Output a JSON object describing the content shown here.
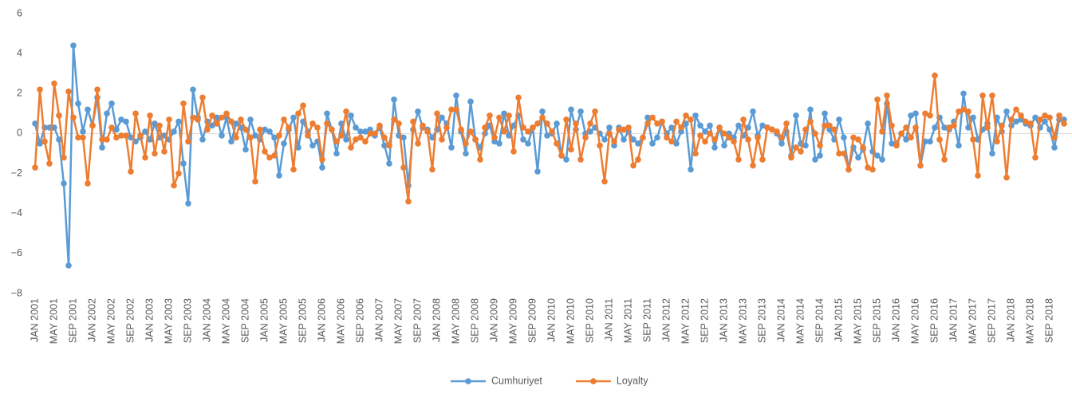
{
  "chart_data": {
    "type": "line",
    "categories": [
      "JAN 2001",
      null,
      null,
      null,
      "MAY 2001",
      null,
      null,
      null,
      "SEP 2001",
      null,
      null,
      null,
      "JAN 2002",
      null,
      null,
      null,
      "MAY 2002",
      null,
      null,
      null,
      "SEP 2002",
      null,
      null,
      null,
      "JAN 2003",
      null,
      null,
      null,
      "MAY 2003",
      null,
      null,
      null,
      "SEP 2003",
      null,
      null,
      null,
      "JAN 2004",
      null,
      null,
      null,
      "MAY 2004",
      null,
      null,
      null,
      "SEP 2004",
      null,
      null,
      null,
      "JAN 2005",
      null,
      null,
      null,
      "MAY 2005",
      null,
      null,
      null,
      "SEP 2005",
      null,
      null,
      null,
      "JAN 2006",
      null,
      null,
      null,
      "MAY 2006",
      null,
      null,
      null,
      "SEP 2006",
      null,
      null,
      null,
      "JAN 2007",
      null,
      null,
      null,
      "MAY 2007",
      null,
      null,
      null,
      "SEP 2007",
      null,
      null,
      null,
      "JAN 2008",
      null,
      null,
      null,
      "MAY 2008",
      null,
      null,
      null,
      "SEP 2008",
      null,
      null,
      null,
      "JAN 2009",
      null,
      null,
      null,
      "MAY 2009",
      null,
      null,
      null,
      "SEP 2009",
      null,
      null,
      null,
      "JAN 2010",
      null,
      null,
      null,
      "MAY 2010",
      null,
      null,
      null,
      "SEP 2010",
      null,
      null,
      null,
      "JAN 2011",
      null,
      null,
      null,
      "MAY 2011",
      null,
      null,
      null,
      "SEP 2011",
      null,
      null,
      null,
      "JAN 2012",
      null,
      null,
      null,
      "MAY 2012",
      null,
      null,
      null,
      "SEP 2012",
      null,
      null,
      null,
      "JAN 2013",
      null,
      null,
      null,
      "MAY 2013",
      null,
      null,
      null,
      "SEP 2013",
      null,
      null,
      null,
      "JAN 2014",
      null,
      null,
      null,
      "MAY 2014",
      null,
      null,
      null,
      "SEP 2014",
      null,
      null,
      null,
      "JAN 2015",
      null,
      null,
      null,
      "MAY 2015",
      null,
      null,
      null,
      "SEP 2015",
      null,
      null,
      null,
      "JAN 2016",
      null,
      null,
      null,
      "MAY 2016",
      null,
      null,
      null,
      "SEP 2016",
      null,
      null,
      null,
      "JAN 2017",
      null,
      null,
      null,
      "MAY 2017",
      null,
      null,
      null,
      "SEP 2017",
      null,
      null,
      null,
      "JAN 2018",
      null,
      null,
      null,
      "MAY 2018",
      null,
      null,
      null,
      "SEP 2018",
      null,
      null,
      null
    ],
    "series": [
      {
        "name": "Cumhuriyet",
        "color": "#5b9bd5",
        "values": [
          0.5,
          -0.5,
          0.3,
          0.3,
          0.3,
          -0.3,
          -2.5,
          -6.6,
          4.4,
          1.5,
          0.1,
          1.2,
          0.4,
          1.8,
          -0.7,
          1.0,
          1.5,
          0.2,
          0.7,
          0.6,
          -0.2,
          -0.4,
          -0.2,
          0.1,
          -0.3,
          0.5,
          -0.2,
          -0.1,
          -0.3,
          0.1,
          0.6,
          -1.5,
          -3.5,
          2.2,
          0.8,
          -0.3,
          0.6,
          0.4,
          0.8,
          -0.1,
          0.8,
          -0.4,
          0.5,
          0.3,
          -0.8,
          0.7,
          -0.1,
          -0.3,
          0.2,
          0.1,
          -0.2,
          -2.1,
          -0.5,
          0.2,
          0.8,
          -0.7,
          0.6,
          0.1,
          -0.6,
          -0.4,
          -1.7,
          1.0,
          0.2,
          -1.0,
          0.5,
          -0.3,
          0.9,
          0.3,
          0.1,
          0.1,
          0.2,
          -0.1,
          0.3,
          -0.6,
          -1.5,
          1.7,
          -0.1,
          -0.2,
          -2.6,
          0.2,
          1.1,
          0.3,
          0.2,
          -0.2,
          0.2,
          0.8,
          0.5,
          -0.7,
          1.9,
          0.1,
          -1.0,
          1.6,
          -0.3,
          -0.7,
          0.0,
          0.4,
          -0.4,
          -0.5,
          1.0,
          -0.1,
          0.4,
          0.9,
          -0.3,
          -0.5,
          0.3,
          -1.9,
          1.1,
          -0.1,
          0.0,
          0.5,
          -1.1,
          -1.3,
          1.2,
          0.2,
          1.1,
          0.0,
          0.1,
          0.3,
          0.0,
          -0.3,
          0.3,
          -0.6,
          0.3,
          -0.3,
          0.1,
          -0.3,
          -0.5,
          -0.2,
          0.8,
          -0.5,
          -0.2,
          0.6,
          0.0,
          0.3,
          -0.5,
          0.1,
          0.5,
          -1.8,
          0.9,
          0.4,
          0.1,
          0.4,
          -0.7,
          0.3,
          -0.6,
          0.0,
          -0.2,
          0.4,
          -0.1,
          0.3,
          1.1,
          -0.1,
          0.4,
          0.3,
          0.2,
          0.0,
          -0.5,
          0.1,
          -1.1,
          0.9,
          -0.5,
          -0.6,
          1.2,
          -1.3,
          -1.1,
          1.0,
          0.2,
          -0.3,
          0.7,
          -0.2,
          -1.8,
          -0.7,
          -1.2,
          -0.8,
          0.5,
          -0.9,
          -1.1,
          -1.3,
          1.5,
          -0.5,
          -0.5,
          0.0,
          -0.3,
          0.9,
          1.0,
          -1.6,
          -0.4,
          -0.4,
          0.3,
          0.8,
          0.3,
          0.2,
          0.6,
          -0.6,
          2.0,
          0.3,
          0.8,
          -0.3,
          0.2,
          0.5,
          -1.0,
          0.8,
          0.1,
          1.1,
          0.4,
          0.6,
          0.7,
          0.5,
          0.4,
          0.8,
          0.3,
          0.6,
          0.2,
          -0.7,
          0.7,
          0.7
        ]
      },
      {
        "name": "Loyalty",
        "color": "#ed7d31",
        "values": [
          -1.7,
          2.2,
          -0.4,
          -1.5,
          2.5,
          0.9,
          -1.2,
          2.1,
          0.8,
          -0.2,
          -0.2,
          -2.5,
          0.4,
          2.2,
          -0.3,
          -0.3,
          0.3,
          -0.2,
          -0.1,
          -0.1,
          -1.9,
          1.0,
          -0.1,
          -1.2,
          0.9,
          -1.0,
          0.4,
          -0.9,
          0.7,
          -2.6,
          -2.0,
          1.5,
          -0.4,
          0.8,
          0.7,
          1.8,
          0.2,
          0.9,
          0.5,
          0.8,
          1.0,
          0.6,
          -0.2,
          0.7,
          0.2,
          -0.2,
          -2.4,
          0.2,
          -0.9,
          -1.2,
          -1.1,
          -0.1,
          0.7,
          0.3,
          -1.8,
          1.0,
          1.4,
          -0.1,
          0.5,
          0.3,
          -1.3,
          0.5,
          0.2,
          -0.4,
          -0.1,
          1.1,
          -0.7,
          -0.3,
          -0.2,
          -0.4,
          0.0,
          0.0,
          0.4,
          -0.2,
          -0.6,
          0.7,
          0.5,
          -1.7,
          -3.4,
          0.6,
          -0.5,
          0.4,
          0.1,
          -1.8,
          1.0,
          -0.3,
          0.3,
          1.2,
          1.2,
          0.2,
          -0.5,
          0.1,
          -0.3,
          -1.3,
          0.3,
          0.9,
          -0.2,
          0.8,
          0.1,
          0.9,
          -0.9,
          1.8,
          0.3,
          0.1,
          0.3,
          0.5,
          0.8,
          0.5,
          0.1,
          -0.5,
          -1.1,
          0.7,
          -0.8,
          0.5,
          -1.3,
          -0.2,
          0.5,
          1.1,
          -0.6,
          -2.4,
          0.0,
          -0.4,
          0.2,
          0.2,
          0.3,
          -1.6,
          -1.3,
          -0.2,
          0.5,
          0.8,
          0.5,
          0.6,
          -0.2,
          -0.4,
          0.6,
          0.3,
          0.9,
          0.7,
          -1.0,
          -0.1,
          -0.4,
          0.0,
          -0.3,
          0.3,
          0.0,
          -0.2,
          -0.4,
          -1.3,
          0.7,
          -0.3,
          -1.6,
          -0.2,
          -1.3,
          0.3,
          0.2,
          0.1,
          -0.2,
          0.5,
          -1.2,
          -0.7,
          -0.9,
          0.2,
          0.6,
          0.0,
          -0.6,
          0.4,
          0.4,
          0.2,
          -1.0,
          -1.0,
          -1.8,
          -0.2,
          -0.3,
          -0.7,
          -1.7,
          -1.8,
          1.7,
          0.1,
          1.9,
          0.4,
          -0.6,
          0.0,
          0.3,
          -0.2,
          0.3,
          -1.6,
          1.0,
          0.9,
          2.9,
          -0.3,
          -1.3,
          0.3,
          0.4,
          1.1,
          1.2,
          1.1,
          -0.3,
          -2.1,
          1.9,
          0.3,
          1.9,
          -0.4,
          0.4,
          -2.2,
          0.7,
          1.2,
          0.9,
          0.6,
          0.5,
          -1.2,
          0.7,
          0.9,
          0.8,
          -0.2,
          0.9,
          0.5
        ]
      }
    ],
    "ylim": [
      -8,
      6
    ],
    "yticks": [
      {
        "value": -8,
        "label": "−8"
      },
      {
        "value": -6,
        "label": "−6"
      },
      {
        "value": -4,
        "label": "−4"
      },
      {
        "value": -2,
        "label": "−2"
      },
      0,
      2,
      4,
      6
    ],
    "grid": false,
    "legend": "bottom"
  }
}
